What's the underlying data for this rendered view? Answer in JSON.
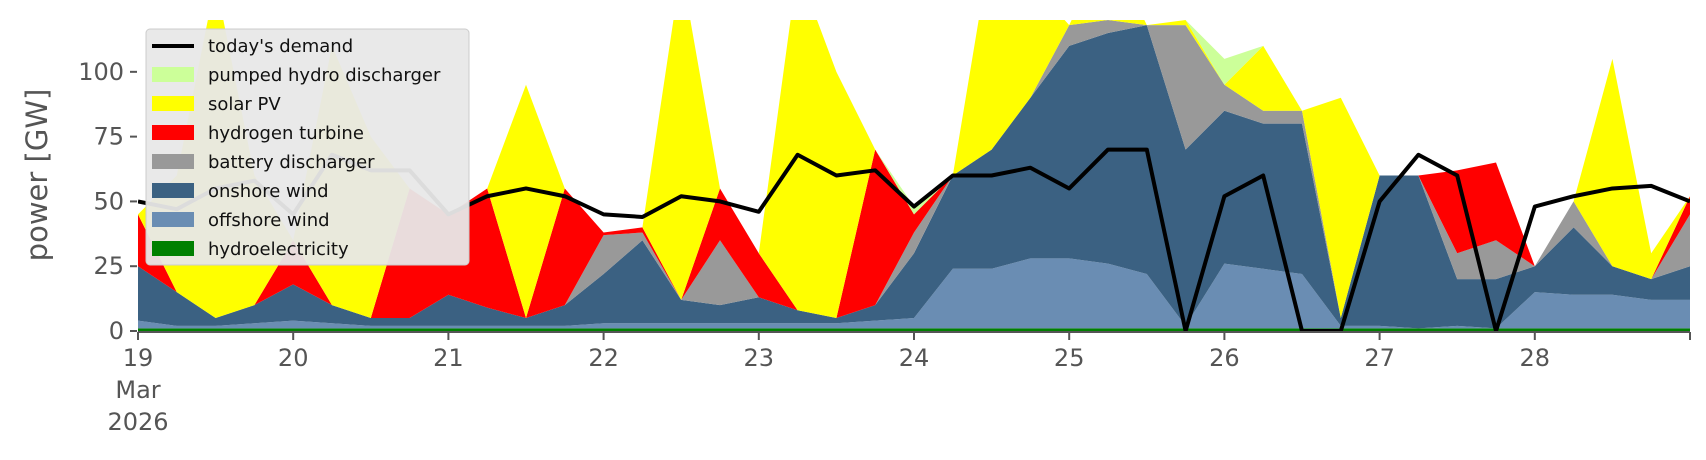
{
  "chart_data": {
    "type": "area",
    "ylabel": "power [GW]",
    "ylim": [
      0,
      120
    ],
    "xlim": [
      "2026-03-19 00:00",
      "2026-03-29 00:00"
    ],
    "y_ticks": [
      0,
      25,
      50,
      75,
      100
    ],
    "x_ticks": [
      {
        "x": "2026-03-19",
        "label": "19",
        "sub1": "Mar",
        "sub2": "2026"
      },
      {
        "x": "2026-03-20",
        "label": "20"
      },
      {
        "x": "2026-03-21",
        "label": "21"
      },
      {
        "x": "2026-03-22",
        "label": "22"
      },
      {
        "x": "2026-03-23",
        "label": "23"
      },
      {
        "x": "2026-03-24",
        "label": "24"
      },
      {
        "x": "2026-03-25",
        "label": "25"
      },
      {
        "x": "2026-03-26",
        "label": "26"
      },
      {
        "x": "2026-03-27",
        "label": "27"
      },
      {
        "x": "2026-03-28",
        "label": "28"
      }
    ],
    "legend_placement": "upper-left",
    "grid": false,
    "x_dates": [
      "2026-03-19 00:00",
      "2026-03-19 06:00",
      "2026-03-19 12:00",
      "2026-03-19 18:00",
      "2026-03-20 00:00",
      "2026-03-20 06:00",
      "2026-03-20 12:00",
      "2026-03-20 18:00",
      "2026-03-21 00:00",
      "2026-03-21 06:00",
      "2026-03-21 12:00",
      "2026-03-21 18:00",
      "2026-03-22 00:00",
      "2026-03-22 06:00",
      "2026-03-22 12:00",
      "2026-03-22 18:00",
      "2026-03-23 00:00",
      "2026-03-23 06:00",
      "2026-03-23 12:00",
      "2026-03-23 18:00",
      "2026-03-24 00:00",
      "2026-03-24 06:00",
      "2026-03-24 12:00",
      "2026-03-24 18:00",
      "2026-03-25 00:00",
      "2026-03-25 06:00",
      "2026-03-25 12:00",
      "2026-03-25 18:00",
      "2026-03-26 00:00",
      "2026-03-26 06:00",
      "2026-03-26 12:00",
      "2026-03-26 18:00",
      "2026-03-27 00:00",
      "2026-03-27 06:00",
      "2026-03-27 12:00",
      "2026-03-27 18:00",
      "2026-03-28 00:00",
      "2026-03-28 06:00",
      "2026-03-28 12:00",
      "2026-03-28 18:00",
      "2026-03-29 00:00"
    ],
    "series": [
      {
        "name": "hydroelectricity",
        "color": "#008000",
        "values": [
          1,
          1,
          1,
          1,
          1,
          1,
          1,
          1,
          1,
          1,
          1,
          1,
          1,
          1,
          1,
          1,
          1,
          1,
          1,
          1,
          1,
          1,
          1,
          1,
          1,
          1,
          1,
          1,
          1,
          1,
          1,
          1,
          1,
          1,
          1,
          1,
          1,
          1,
          1,
          1,
          1
        ]
      },
      {
        "name": "offshore wind",
        "color": "#6a8db3",
        "values": [
          4,
          2,
          2,
          3,
          4,
          3,
          2,
          2,
          2,
          2,
          2,
          2,
          3,
          3,
          3,
          3,
          3,
          3,
          3,
          4,
          5,
          24,
          24,
          28,
          28,
          26,
          22,
          2,
          26,
          24,
          22,
          2,
          2,
          1,
          2,
          1,
          15,
          14,
          14,
          12,
          12
        ]
      },
      {
        "name": "onshore wind",
        "color": "#3b6182",
        "values": [
          25,
          15,
          5,
          10,
          18,
          10,
          5,
          5,
          14,
          9,
          5,
          10,
          22,
          35,
          12,
          10,
          13,
          8,
          5,
          10,
          30,
          60,
          70,
          90,
          110,
          115,
          118,
          70,
          85,
          80,
          80,
          5,
          60,
          60,
          20,
          20,
          25,
          40,
          25,
          20,
          25
        ]
      },
      {
        "name": "battery discharger",
        "color": "#999999",
        "values": [
          25,
          15,
          5,
          10,
          18,
          10,
          5,
          5,
          14,
          9,
          5,
          10,
          37,
          38,
          12,
          35,
          13,
          8,
          5,
          10,
          38,
          60,
          70,
          90,
          118,
          120,
          118,
          118,
          95,
          85,
          85,
          5,
          60,
          60,
          30,
          35,
          25,
          50,
          25,
          20,
          45
        ]
      },
      {
        "name": "hydrogen turbine",
        "color": "#ff0000",
        "values": [
          45,
          15,
          5,
          10,
          35,
          10,
          5,
          55,
          45,
          55,
          5,
          55,
          38,
          40,
          12,
          55,
          30,
          8,
          5,
          70,
          45,
          60,
          70,
          90,
          118,
          120,
          118,
          118,
          95,
          85,
          85,
          5,
          60,
          60,
          62,
          65,
          25,
          50,
          25,
          20,
          52
        ]
      },
      {
        "name": "solar PV",
        "color": "#ffff00",
        "values": [
          45,
          60,
          135,
          60,
          35,
          110,
          75,
          55,
          45,
          55,
          95,
          55,
          38,
          40,
          140,
          55,
          30,
          140,
          100,
          70,
          45,
          60,
          150,
          135,
          118,
          150,
          118,
          120,
          95,
          110,
          85,
          90,
          60,
          60,
          62,
          65,
          25,
          50,
          105,
          30,
          52
        ]
      },
      {
        "name": "pumped hydro discharger",
        "color": "#ccff99",
        "values": [
          45,
          60,
          135,
          60,
          35,
          110,
          75,
          55,
          45,
          55,
          95,
          55,
          38,
          40,
          140,
          55,
          30,
          140,
          100,
          70,
          48,
          60,
          150,
          135,
          118,
          150,
          118,
          120,
          105,
          110,
          85,
          90,
          60,
          60,
          62,
          65,
          25,
          50,
          105,
          30,
          52
        ]
      }
    ],
    "demand": {
      "name": "today's demand",
      "color": "#000000",
      "values": [
        50,
        47,
        55,
        58,
        45,
        68,
        62,
        62,
        45,
        52,
        55,
        52,
        45,
        44,
        52,
        50,
        46,
        68,
        60,
        62,
        48,
        60,
        60,
        63,
        55,
        70,
        70,
        0,
        52,
        60,
        0,
        0,
        50,
        68,
        60,
        0,
        48,
        52,
        55,
        56,
        50
      ]
    }
  }
}
